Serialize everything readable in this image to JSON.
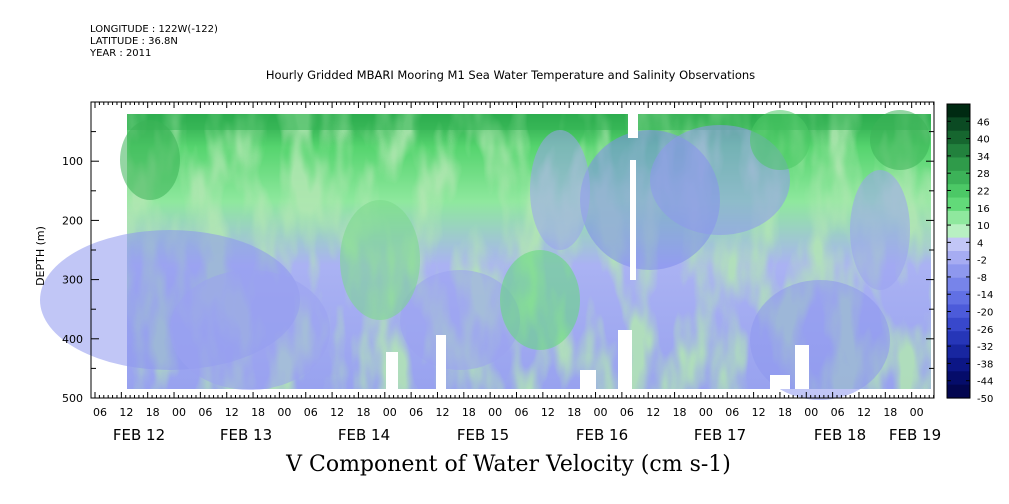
{
  "header": {
    "longitude": "LONGITUDE : 122W(-122)",
    "latitude": "LATITUDE : 36.8N",
    "year": "YEAR : 2011"
  },
  "chart_data": {
    "type": "heatmap",
    "title": "Hourly Gridded MBARI Mooring M1 Sea Water Temperature and Salinity Observations",
    "variable_title": "V Component of Water Velocity (cm s-1)",
    "ylabel": "DEPTH (m)",
    "ylim": [
      500,
      0
    ],
    "y_ticks": [
      "100",
      "200",
      "300",
      "400",
      "500"
    ],
    "x_hour_ticks": [
      "06",
      "12",
      "18",
      "00",
      "06",
      "12",
      "18",
      "00",
      "06",
      "12",
      "18",
      "00",
      "06",
      "12",
      "18",
      "00",
      "06",
      "12",
      "18",
      "00",
      "06",
      "12",
      "18",
      "00",
      "06",
      "12",
      "18",
      "00",
      "06",
      "12",
      "18",
      "00"
    ],
    "x_day_labels": [
      "FEB 12",
      "FEB 13",
      "FEB 14",
      "FEB 15",
      "FEB 16",
      "FEB 17",
      "FEB 18",
      "FEB 19"
    ],
    "colorbar_labels": [
      "46",
      "40",
      "34",
      "28",
      "22",
      "16",
      "10",
      "4",
      "-2",
      "-8",
      "-14",
      "-20",
      "-26",
      "-32",
      "-38",
      "-44",
      "-50"
    ],
    "colorbar_range": [
      -50,
      52
    ],
    "colorbar_colors": [
      "#002a12",
      "#0b4a23",
      "#16662f",
      "#22813d",
      "#2f9b4a",
      "#3cb258",
      "#4cc866",
      "#62da79",
      "#8fe89e",
      "#b8f0c2",
      "#c2c6f6",
      "#a6acf2",
      "#8e98ee",
      "#7784ea",
      "#6170e4",
      "#4c5bda",
      "#3848cc",
      "#2636b8",
      "#1826a0",
      "#0c1686",
      "#050c6a",
      "#030650"
    ]
  }
}
